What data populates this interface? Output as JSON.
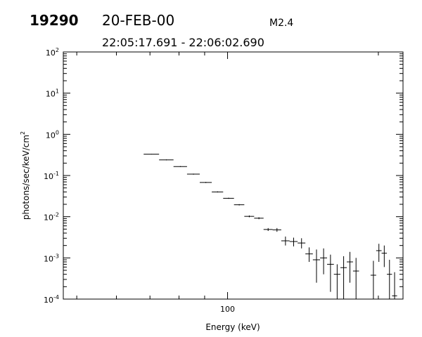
{
  "header": {
    "id": "19290",
    "date": "20-FEB-00",
    "class": "M2.4",
    "time_range": "22:05:17.691 - 22:06:02.690"
  },
  "chart_data": {
    "type": "scatter",
    "xlabel": "Energy (keV)",
    "ylabel_main": "photons/sec/keV/cm",
    "ylabel_sup": "2",
    "x_scale": "log",
    "y_scale": "log",
    "xlim": [
      47,
      224
    ],
    "ylim": [
      0.0001,
      100
    ],
    "x_tick_labels": [
      "100"
    ],
    "y_tick_labels": [
      {
        "base": "10",
        "exp": "-4"
      },
      {
        "base": "10",
        "exp": "-3"
      },
      {
        "base": "10",
        "exp": "-2"
      },
      {
        "base": "10",
        "exp": "-1"
      },
      {
        "base": "10",
        "exp": "0"
      },
      {
        "base": "10",
        "exp": "1"
      },
      {
        "base": "10",
        "exp": "2"
      }
    ],
    "grid": false,
    "points": [
      {
        "x": 70.5,
        "x_lo": 68.0,
        "x_hi": 73.0,
        "y": 0.33,
        "y_lo": 0.325,
        "y_hi": 0.335
      },
      {
        "x": 75.5,
        "x_lo": 73.0,
        "x_hi": 78.0,
        "y": 0.24,
        "y_lo": 0.235,
        "y_hi": 0.246
      },
      {
        "x": 80.5,
        "x_lo": 78.0,
        "x_hi": 83.0,
        "y": 0.165,
        "y_lo": 0.161,
        "y_hi": 0.169
      },
      {
        "x": 85.5,
        "x_lo": 83.0,
        "x_hi": 88.0,
        "y": 0.108,
        "y_lo": 0.105,
        "y_hi": 0.111
      },
      {
        "x": 90.5,
        "x_lo": 88.0,
        "x_hi": 93.0,
        "y": 0.068,
        "y_lo": 0.066,
        "y_hi": 0.07
      },
      {
        "x": 95.5,
        "x_lo": 93.0,
        "x_hi": 98.0,
        "y": 0.04,
        "y_lo": 0.0388,
        "y_hi": 0.0412
      },
      {
        "x": 100.5,
        "x_lo": 98.0,
        "x_hi": 103.0,
        "y": 0.028,
        "y_lo": 0.0271,
        "y_hi": 0.0289
      },
      {
        "x": 105.5,
        "x_lo": 103.0,
        "x_hi": 108.0,
        "y": 0.0195,
        "y_lo": 0.0188,
        "y_hi": 0.0202
      },
      {
        "x": 110.5,
        "x_lo": 108.0,
        "x_hi": 113.0,
        "y": 0.0102,
        "y_lo": 0.0097,
        "y_hi": 0.0107
      },
      {
        "x": 115.5,
        "x_lo": 113.0,
        "x_hi": 118.0,
        "y": 0.0092,
        "y_lo": 0.0087,
        "y_hi": 0.0097
      },
      {
        "x": 120.5,
        "x_lo": 118.0,
        "x_hi": 123.0,
        "y": 0.0049,
        "y_lo": 0.0045,
        "y_hi": 0.0053
      },
      {
        "x": 125.5,
        "x_lo": 123.0,
        "x_hi": 128.0,
        "y": 0.0048,
        "y_lo": 0.0043,
        "y_hi": 0.0053
      },
      {
        "x": 130.5,
        "x_lo": 128.0,
        "x_hi": 133.0,
        "y": 0.0026,
        "y_lo": 0.002,
        "y_hi": 0.0033
      },
      {
        "x": 135.5,
        "x_lo": 133.0,
        "x_hi": 138.0,
        "y": 0.0025,
        "y_lo": 0.0019,
        "y_hi": 0.0031
      },
      {
        "x": 140.5,
        "x_lo": 138.0,
        "x_hi": 143.0,
        "y": 0.0023,
        "y_lo": 0.0017,
        "y_hi": 0.003
      },
      {
        "x": 145.5,
        "x_lo": 143.0,
        "x_hi": 148.0,
        "y": 0.00125,
        "y_lo": 0.0008,
        "y_hi": 0.0018
      },
      {
        "x": 150.5,
        "x_lo": 148.0,
        "x_hi": 153.0,
        "y": 0.0009,
        "y_lo": 0.00025,
        "y_hi": 0.0016
      },
      {
        "x": 155.5,
        "x_lo": 153.0,
        "x_hi": 158.0,
        "y": 0.001,
        "y_lo": 0.0004,
        "y_hi": 0.0017
      },
      {
        "x": 160.5,
        "x_lo": 158.0,
        "x_hi": 163.0,
        "y": 0.0007,
        "y_lo": 0.00015,
        "y_hi": 0.0012
      },
      {
        "x": 165.5,
        "x_lo": 163.0,
        "x_hi": 168.0,
        "y": 0.0004,
        "y_lo": 0.0001,
        "y_hi": 0.0007
      },
      {
        "x": 170.5,
        "x_lo": 168.0,
        "x_hi": 173.0,
        "y": 0.00058,
        "y_lo": 0.0001,
        "y_hi": 0.0011
      },
      {
        "x": 175.5,
        "x_lo": 173.0,
        "x_hi": 178.0,
        "y": 0.0008,
        "y_lo": 0.00025,
        "y_hi": 0.0014
      },
      {
        "x": 180.5,
        "x_lo": 178.0,
        "x_hi": 183.0,
        "y": 0.00048,
        "y_lo": 0.0001,
        "y_hi": 0.001
      },
      {
        "x": 195.5,
        "x_lo": 193.0,
        "x_hi": 198.0,
        "y": 0.00038,
        "y_lo": 0.0001,
        "y_hi": 0.00085
      },
      {
        "x": 200.5,
        "x_lo": 198.0,
        "x_hi": 203.0,
        "y": 0.0015,
        "y_lo": 0.0008,
        "y_hi": 0.0022
      },
      {
        "x": 205.5,
        "x_lo": 203.0,
        "x_hi": 208.0,
        "y": 0.0013,
        "y_lo": 0.0006,
        "y_hi": 0.002
      },
      {
        "x": 210.5,
        "x_lo": 208.0,
        "x_hi": 213.0,
        "y": 0.0004,
        "y_lo": 0.0001,
        "y_hi": 0.0009
      },
      {
        "x": 215.5,
        "x_lo": 213.0,
        "x_hi": 218.0,
        "y": 0.00012,
        "y_lo": 0.0001,
        "y_hi": 0.00045
      }
    ]
  }
}
